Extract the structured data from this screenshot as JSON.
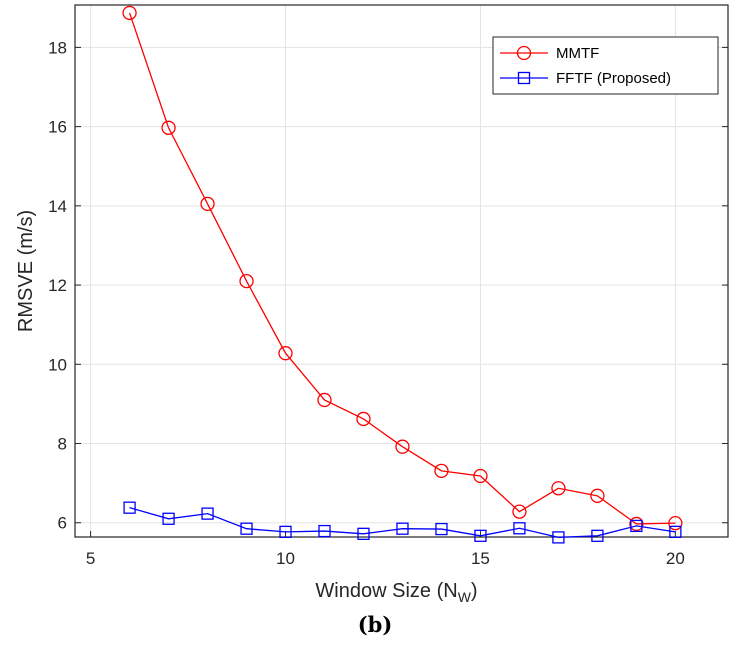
{
  "chart_data": {
    "type": "line",
    "xlabel": "Window Size (N",
    "xlabel_sub": "W",
    "xlabel_end": ")",
    "ylabel": "RMSVE (m/s)",
    "xlim": [
      4.6,
      21.35
    ],
    "ylim": [
      5.64,
      19.07
    ],
    "xticks": [
      5,
      10,
      15,
      20
    ],
    "yticks": [
      6,
      8,
      10,
      12,
      14,
      16,
      18
    ],
    "grid": true,
    "legend_position": "top-right",
    "x": [
      6,
      7,
      8,
      9,
      10,
      11,
      12,
      13,
      14,
      15,
      16,
      17,
      18,
      19,
      20
    ],
    "series": [
      {
        "name": "MMTF",
        "color": "#ff0000",
        "marker": "circle",
        "values": [
          18.87,
          15.97,
          14.05,
          12.1,
          10.28,
          9.1,
          8.62,
          7.92,
          7.31,
          7.18,
          6.28,
          6.87,
          6.68,
          5.97,
          5.99
        ]
      },
      {
        "name": "FFTF (Proposed)",
        "color": "#0000ff",
        "marker": "square",
        "values": [
          6.38,
          6.1,
          6.23,
          5.85,
          5.77,
          5.79,
          5.72,
          5.85,
          5.84,
          5.67,
          5.86,
          5.63,
          5.67,
          5.92,
          5.77
        ]
      }
    ]
  },
  "caption": "(b)"
}
